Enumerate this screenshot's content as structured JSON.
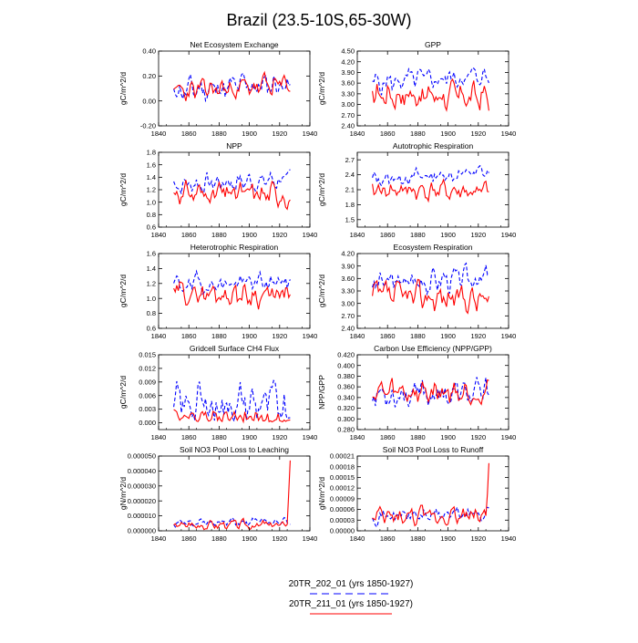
{
  "title": "Brazil (23.5-10S,65-30W)",
  "colors": {
    "series_a": "#0000ff",
    "series_b": "#ff0000",
    "axis": "#000000"
  },
  "legend": [
    {
      "label": "20TR_202_01 (yrs 1850-1927)",
      "style": "dashed",
      "color": "#0000ff"
    },
    {
      "label": "20TR_211_01 (yrs 1850-1927)",
      "style": "solid",
      "color": "#ff0000"
    }
  ],
  "chart_data": [
    {
      "type": "line",
      "title": "Net Ecosystem Exchange",
      "ylabel": "gC/m^2/d",
      "xlim": [
        1840,
        1940
      ],
      "xticks": [
        "1840",
        "1860",
        "1880",
        "1900",
        "1920",
        "1940"
      ],
      "ylim": [
        -0.2,
        0.4
      ],
      "yticks": [
        "-0.20",
        "0.00",
        "0.20",
        "0.40"
      ],
      "a": {
        "base": 0.08,
        "amp": 0.08,
        "trend": 0.06,
        "seed": 11
      },
      "b": {
        "base": 0.07,
        "amp": 0.07,
        "trend": 0.06,
        "seed": 23
      }
    },
    {
      "type": "line",
      "title": "GPP",
      "ylabel": "gC/m^2/d",
      "xlim": [
        1840,
        1940
      ],
      "xticks": [
        "1840",
        "1860",
        "1880",
        "1900",
        "1920",
        "1940"
      ],
      "ylim": [
        2.4,
        4.5
      ],
      "yticks": [
        "2.40",
        "2.70",
        "3.00",
        "3.30",
        "3.60",
        "3.90",
        "4.20",
        "4.50"
      ],
      "a": {
        "base": 3.6,
        "amp": 0.25,
        "trend": 0.2,
        "seed": 5
      },
      "b": {
        "base": 3.3,
        "amp": 0.3,
        "trend": -0.1,
        "seed": 17
      }
    },
    {
      "type": "line",
      "title": "NPP",
      "ylabel": "gC/m^2/d",
      "xlim": [
        1840,
        1940
      ],
      "xticks": [
        "1840",
        "1860",
        "1880",
        "1900",
        "1920",
        "1940"
      ],
      "ylim": [
        0.6,
        1.8
      ],
      "yticks": [
        "0.6",
        "0.8",
        "1.0",
        "1.2",
        "1.4",
        "1.6",
        "1.8"
      ],
      "a": {
        "base": 1.28,
        "amp": 0.12,
        "trend": 0.08,
        "seed": 7
      },
      "b": {
        "base": 1.15,
        "amp": 0.15,
        "trend": -0.03,
        "seed": 31
      }
    },
    {
      "type": "line",
      "title": "Autotrophic Respiration",
      "ylabel": "gC/m^2/d",
      "xlim": [
        1840,
        1940
      ],
      "xticks": [
        "1840",
        "1860",
        "1880",
        "1900",
        "1920",
        "1940"
      ],
      "ylim": [
        1.35,
        2.85
      ],
      "yticks": [
        "1.5",
        "1.8",
        "2.1",
        "2.4",
        "2.7"
      ],
      "a": {
        "base": 2.3,
        "amp": 0.12,
        "trend": 0.15,
        "seed": 13
      },
      "b": {
        "base": 2.1,
        "amp": 0.15,
        "trend": -0.05,
        "seed": 41
      }
    },
    {
      "type": "line",
      "title": "Heterotrophic Respiration",
      "ylabel": "gC/m^2/d",
      "xlim": [
        1840,
        1940
      ],
      "xticks": [
        "1840",
        "1860",
        "1880",
        "1900",
        "1920",
        "1940"
      ],
      "ylim": [
        0.6,
        1.6
      ],
      "yticks": [
        "0.6",
        "0.8",
        "1.0",
        "1.2",
        "1.4",
        "1.6"
      ],
      "a": {
        "base": 1.18,
        "amp": 0.1,
        "trend": 0.04,
        "seed": 19
      },
      "b": {
        "base": 1.08,
        "amp": 0.12,
        "trend": -0.05,
        "seed": 29
      }
    },
    {
      "type": "line",
      "title": "Ecosystem Respiration",
      "ylabel": "gC/m^2/d",
      "xlim": [
        1840,
        1940
      ],
      "xticks": [
        "1840",
        "1860",
        "1880",
        "1900",
        "1920",
        "1940"
      ],
      "ylim": [
        2.4,
        4.2
      ],
      "yticks": [
        "2.40",
        "2.70",
        "3.00",
        "3.30",
        "3.60",
        "3.90",
        "4.20"
      ],
      "a": {
        "base": 3.48,
        "amp": 0.22,
        "trend": 0.15,
        "seed": 3
      },
      "b": {
        "base": 3.2,
        "amp": 0.25,
        "trend": -0.1,
        "seed": 37
      }
    },
    {
      "type": "line",
      "title": "Gridcell Surface CH4 Flux",
      "ylabel": "gC/m^2/d",
      "xlim": [
        1840,
        1940
      ],
      "xticks": [
        "1840",
        "1860",
        "1880",
        "1900",
        "1920",
        "1940"
      ],
      "ylim": [
        -0.0015,
        0.015
      ],
      "yticks": [
        "0.000",
        "0.003",
        "0.006",
        "0.009",
        "0.012",
        "0.015"
      ],
      "a": {
        "base": 0.004,
        "amp": 0.0035,
        "trend": 0.0,
        "seed": 43,
        "min": 0.0003
      },
      "b": {
        "base": 0.0015,
        "amp": 0.0015,
        "trend": -0.001,
        "seed": 47,
        "min": 0.0002
      }
    },
    {
      "type": "line",
      "title": "Carbon Use Efficiency (NPP/GPP)",
      "ylabel": "NPP/GPP",
      "xlim": [
        1840,
        1940
      ],
      "xticks": [
        "1840",
        "1860",
        "1880",
        "1900",
        "1920",
        "1940"
      ],
      "ylim": [
        0.28,
        0.42
      ],
      "yticks": [
        "0.280",
        "0.300",
        "0.320",
        "0.340",
        "0.360",
        "0.380",
        "0.400",
        "0.420"
      ],
      "a": {
        "base": 0.347,
        "amp": 0.02,
        "trend": 0.0,
        "seed": 53
      },
      "b": {
        "base": 0.35,
        "amp": 0.018,
        "trend": 0.0,
        "seed": 59
      }
    },
    {
      "type": "line",
      "title": "Soil NO3 Pool Loss to Leaching",
      "ylabel": "gN/m^2/d",
      "xlim": [
        1840,
        1940
      ],
      "xticks": [
        "1840",
        "1860",
        "1880",
        "1900",
        "1920",
        "1940"
      ],
      "ylim": [
        0,
        5e-05
      ],
      "yticks": [
        "0.000000",
        "0.000010",
        "0.000020",
        "0.000030",
        "0.000040",
        "0.000050"
      ],
      "a": {
        "base": 4.5e-06,
        "amp": 2e-06,
        "trend": 2e-06,
        "seed": 61,
        "min": 1e-06
      },
      "b": {
        "base": 4e-06,
        "amp": 2.5e-06,
        "trend": 0.0,
        "seed": 67,
        "min": 8e-07,
        "spike": 4.7e-05
      }
    },
    {
      "type": "line",
      "title": "Soil NO3 Pool Loss to Runoff",
      "ylabel": "gN/m^2/d",
      "xlim": [
        1840,
        1940
      ],
      "xticks": [
        "1840",
        "1860",
        "1880",
        "1900",
        "1920",
        "1940"
      ],
      "ylim": [
        0,
        0.00021
      ],
      "yticks": [
        "0.00000",
        "0.00003",
        "0.00006",
        "0.00009",
        "0.00012",
        "0.00015",
        "0.00018",
        "0.00021"
      ],
      "a": {
        "base": 4e-05,
        "amp": 1.5e-05,
        "trend": 1e-05,
        "seed": 71,
        "min": 1e-05
      },
      "b": {
        "base": 3.5e-05,
        "amp": 2e-05,
        "trend": 1e-05,
        "seed": 73,
        "min": 1e-05,
        "spike": 0.00019
      }
    }
  ]
}
